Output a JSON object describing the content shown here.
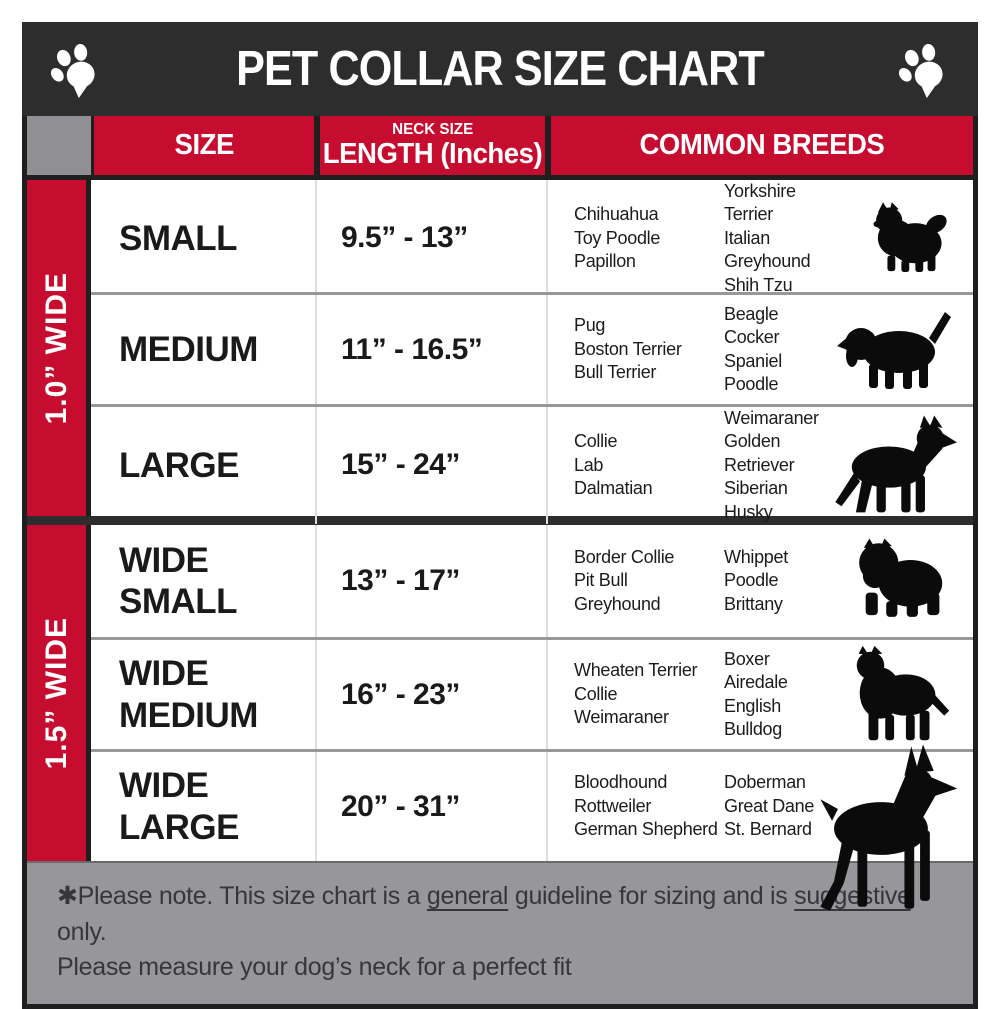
{
  "title": "PET COLLAR SIZE CHART",
  "header_icons": {
    "left": "paw-icon",
    "right": "paw-icon"
  },
  "colors": {
    "accent_red": "#C60C2F",
    "title_bar": "#2D2D2D",
    "footer_gray": "#97979B",
    "row_divider": "#98989B",
    "silhouette": "#0B0B0B"
  },
  "table_header": {
    "size": "SIZE",
    "neck_small": "NECK SIZE",
    "neck_large": "LENGTH (Inches)",
    "breeds": "COMMON BREEDS"
  },
  "chart_data": {
    "type": "table",
    "title": "PET COLLAR SIZE CHART",
    "columns": [
      "SIZE",
      "NECK SIZE LENGTH (Inches)",
      "COMMON BREEDS"
    ],
    "sections": [
      {
        "label": "1.0” WIDE",
        "rows": [
          {
            "size_lines": [
              "SMALL"
            ],
            "neck_length": "9.5” - 13”",
            "breeds_col1": [
              "Chihuahua",
              "Toy Poodle",
              "Papillon"
            ],
            "breeds_col2": [
              "Yorkshire Terrier",
              "Italian Greyhound",
              "Shih Tzu"
            ],
            "dog_icon": "pomeranian-dog-icon"
          },
          {
            "size_lines": [
              "MEDIUM"
            ],
            "neck_length": "11” - 16.5”",
            "breeds_col1": [
              "Pug",
              "Boston Terrier",
              "Bull Terrier"
            ],
            "breeds_col2": [
              "Beagle",
              "Cocker Spaniel",
              "Poodle"
            ],
            "dog_icon": "beagle-dog-icon"
          },
          {
            "size_lines": [
              "LARGE"
            ],
            "neck_length": "15” - 24”",
            "breeds_col1": [
              "Collie",
              "Lab",
              "Dalmatian"
            ],
            "breeds_col2": [
              "Weimaraner",
              "Golden Retriever",
              "Siberian Husky"
            ],
            "dog_icon": "german-shepherd-dog-icon"
          }
        ]
      },
      {
        "label": "1.5” WIDE",
        "rows": [
          {
            "size_lines": [
              "WIDE",
              "SMALL"
            ],
            "neck_length": "13” - 17”",
            "breeds_col1": [
              "Border Collie",
              "Pit Bull",
              "Greyhound"
            ],
            "breeds_col2": [
              "Whippet",
              "Poodle",
              "Brittany"
            ],
            "dog_icon": "bulldog-dog-icon"
          },
          {
            "size_lines": [
              "WIDE",
              "MEDIUM"
            ],
            "neck_length": "16” - 23”",
            "breeds_col1": [
              "Wheaten Terrier",
              "Collie",
              "Weimaraner"
            ],
            "breeds_col2": [
              "Boxer",
              "Airedale",
              "English Bulldog"
            ],
            "dog_icon": "pitbull-dog-icon"
          },
          {
            "size_lines": [
              "WIDE",
              "LARGE"
            ],
            "neck_length": "20” - 31”",
            "breeds_col1": [
              "Bloodhound",
              "Rottweiler",
              "German Shepherd"
            ],
            "breeds_col2": [
              "Doberman",
              "Great Dane",
              "St. Bernard"
            ],
            "dog_icon": "doberman-dog-icon"
          }
        ]
      }
    ]
  },
  "footer": {
    "note_parts": [
      {
        "text": "✱Please note. This size chart is a "
      },
      {
        "text": "general",
        "underline": true
      },
      {
        "text": " guideline for sizing and is "
      },
      {
        "text": "suggestive",
        "underline": true
      },
      {
        "text": " only."
      }
    ],
    "line2": "Please measure your dog’s neck for a perfect fit"
  }
}
